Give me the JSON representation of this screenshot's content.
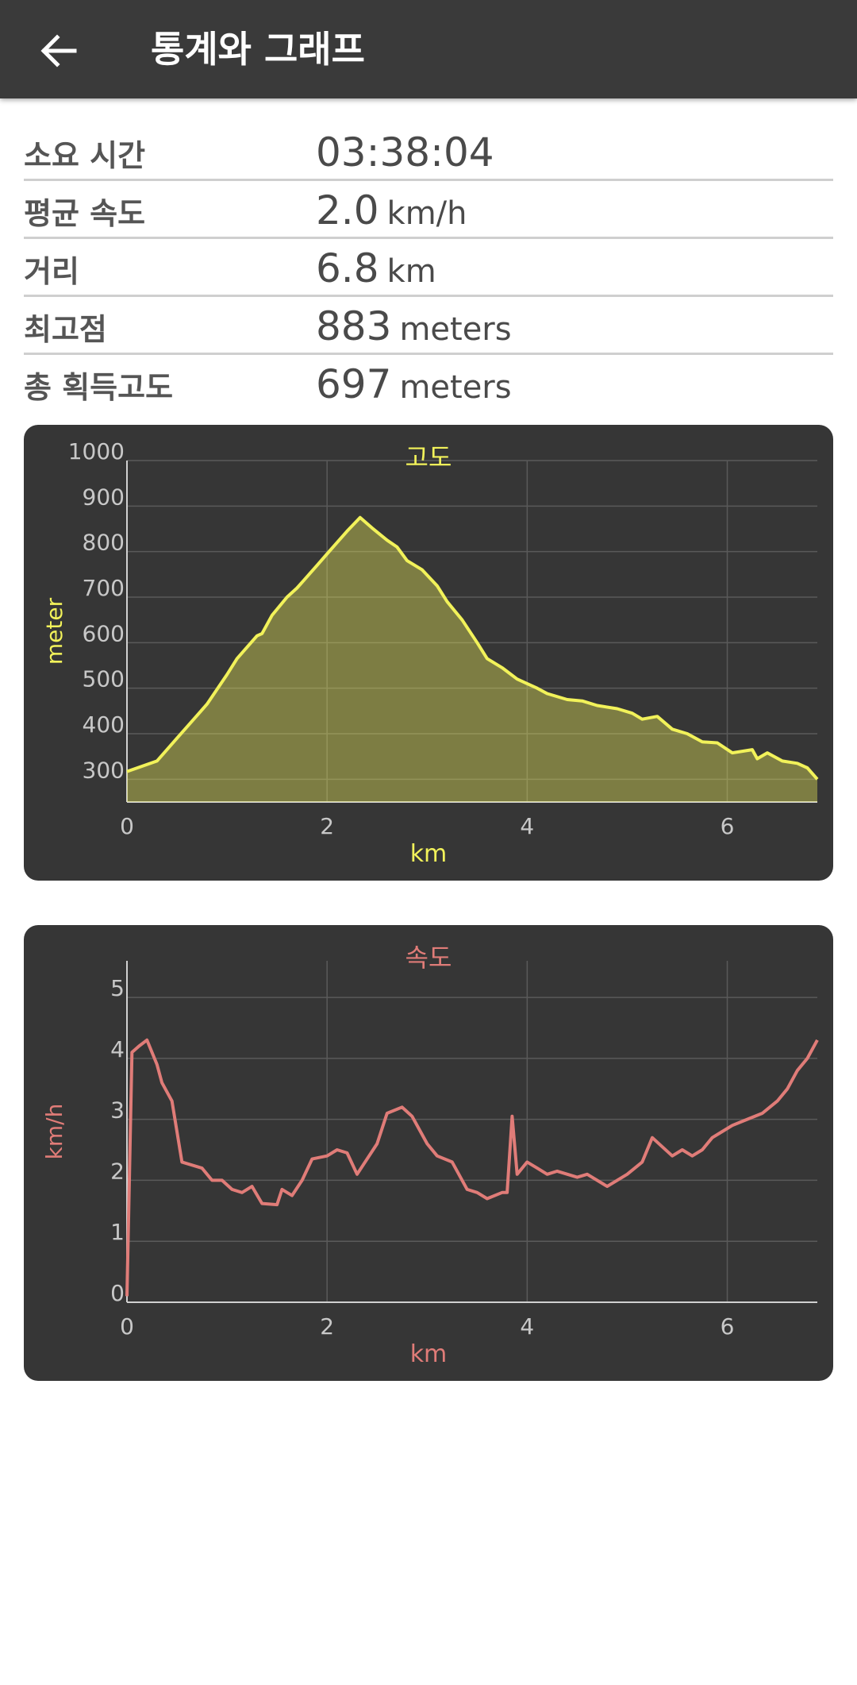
{
  "header": {
    "title": "통계와 그래프",
    "back_icon": "arrow-left-icon"
  },
  "stats": [
    {
      "label": "소요 시간",
      "value": "03:38:04",
      "unit": ""
    },
    {
      "label": "평균 속도",
      "value": "2.0",
      "unit": "km/h"
    },
    {
      "label": "거리",
      "value": "6.8",
      "unit": "km"
    },
    {
      "label": "최고점",
      "value": "883",
      "unit": "meters"
    },
    {
      "label": "총 획득고도",
      "value": "697",
      "unit": "meters"
    }
  ],
  "colors": {
    "altitude": "#f2f25a",
    "speed": "#e07c78",
    "card": "#363636",
    "grid": "#5a5a5a",
    "axis_text": "#c8c8c8"
  },
  "chart_data": [
    {
      "type": "area",
      "title": "고도",
      "xlabel": "km",
      "ylabel": "meter",
      "xlim": [
        0,
        6.9
      ],
      "ylim": [
        250,
        1000
      ],
      "xticks": [
        0,
        2,
        4,
        6
      ],
      "yticks": [
        300,
        400,
        500,
        600,
        700,
        800,
        900,
        1000
      ],
      "grid": true,
      "points": [
        [
          0,
          317
        ],
        [
          0.3,
          340
        ],
        [
          0.5,
          390
        ],
        [
          0.7,
          440
        ],
        [
          0.8,
          465
        ],
        [
          1.0,
          530
        ],
        [
          1.1,
          565
        ],
        [
          1.2,
          590
        ],
        [
          1.3,
          615
        ],
        [
          1.35,
          620
        ],
        [
          1.45,
          660
        ],
        [
          1.6,
          700
        ],
        [
          1.7,
          720
        ],
        [
          1.8,
          745
        ],
        [
          1.9,
          770
        ],
        [
          2.0,
          795
        ],
        [
          2.1,
          820
        ],
        [
          2.2,
          845
        ],
        [
          2.3,
          868
        ],
        [
          2.33,
          875
        ],
        [
          2.45,
          852
        ],
        [
          2.6,
          825
        ],
        [
          2.7,
          810
        ],
        [
          2.8,
          780
        ],
        [
          2.95,
          760
        ],
        [
          3.1,
          725
        ],
        [
          3.2,
          690
        ],
        [
          3.35,
          650
        ],
        [
          3.5,
          600
        ],
        [
          3.6,
          565
        ],
        [
          3.75,
          545
        ],
        [
          3.9,
          520
        ],
        [
          4.0,
          510
        ],
        [
          4.1,
          500
        ],
        [
          4.2,
          488
        ],
        [
          4.4,
          475
        ],
        [
          4.55,
          472
        ],
        [
          4.7,
          462
        ],
        [
          4.9,
          455
        ],
        [
          5.05,
          445
        ],
        [
          5.15,
          432
        ],
        [
          5.3,
          438
        ],
        [
          5.45,
          410
        ],
        [
          5.6,
          400
        ],
        [
          5.75,
          382
        ],
        [
          5.9,
          380
        ],
        [
          6.05,
          358
        ],
        [
          6.25,
          365
        ],
        [
          6.3,
          345
        ],
        [
          6.4,
          358
        ],
        [
          6.55,
          340
        ],
        [
          6.7,
          335
        ],
        [
          6.8,
          325
        ],
        [
          6.9,
          300
        ]
      ]
    },
    {
      "type": "line",
      "title": "속도",
      "xlabel": "km",
      "ylabel": "km/h",
      "xlim": [
        0,
        6.9
      ],
      "ylim": [
        0,
        5.6
      ],
      "xticks": [
        0,
        2,
        4,
        6
      ],
      "yticks": [
        0,
        1,
        2,
        3,
        4,
        5
      ],
      "grid": true,
      "points": [
        [
          0,
          0.1
        ],
        [
          0.05,
          4.1
        ],
        [
          0.12,
          4.2
        ],
        [
          0.2,
          4.3
        ],
        [
          0.3,
          3.9
        ],
        [
          0.35,
          3.6
        ],
        [
          0.45,
          3.3
        ],
        [
          0.55,
          2.3
        ],
        [
          0.75,
          2.2
        ],
        [
          0.85,
          2.0
        ],
        [
          0.95,
          2.0
        ],
        [
          1.05,
          1.85
        ],
        [
          1.15,
          1.8
        ],
        [
          1.25,
          1.9
        ],
        [
          1.35,
          1.62
        ],
        [
          1.5,
          1.6
        ],
        [
          1.55,
          1.85
        ],
        [
          1.65,
          1.75
        ],
        [
          1.75,
          2.0
        ],
        [
          1.85,
          2.35
        ],
        [
          2.0,
          2.4
        ],
        [
          2.1,
          2.5
        ],
        [
          2.2,
          2.45
        ],
        [
          2.3,
          2.1
        ],
        [
          2.5,
          2.6
        ],
        [
          2.6,
          3.1
        ],
        [
          2.75,
          3.2
        ],
        [
          2.85,
          3.05
        ],
        [
          3.0,
          2.6
        ],
        [
          3.1,
          2.4
        ],
        [
          3.25,
          2.3
        ],
        [
          3.4,
          1.85
        ],
        [
          3.5,
          1.8
        ],
        [
          3.6,
          1.7
        ],
        [
          3.75,
          1.8
        ],
        [
          3.8,
          1.8
        ],
        [
          3.85,
          3.05
        ],
        [
          3.9,
          2.1
        ],
        [
          4.0,
          2.3
        ],
        [
          4.1,
          2.2
        ],
        [
          4.2,
          2.1
        ],
        [
          4.3,
          2.15
        ],
        [
          4.5,
          2.05
        ],
        [
          4.6,
          2.1
        ],
        [
          4.8,
          1.9
        ],
        [
          4.9,
          2.0
        ],
        [
          5.0,
          2.1
        ],
        [
          5.15,
          2.3
        ],
        [
          5.25,
          2.7
        ],
        [
          5.35,
          2.55
        ],
        [
          5.45,
          2.4
        ],
        [
          5.55,
          2.5
        ],
        [
          5.65,
          2.4
        ],
        [
          5.75,
          2.5
        ],
        [
          5.85,
          2.7
        ],
        [
          5.95,
          2.8
        ],
        [
          6.05,
          2.9
        ],
        [
          6.2,
          3.0
        ],
        [
          6.35,
          3.1
        ],
        [
          6.5,
          3.3
        ],
        [
          6.6,
          3.5
        ],
        [
          6.7,
          3.8
        ],
        [
          6.8,
          4.0
        ],
        [
          6.9,
          4.3
        ]
      ]
    }
  ]
}
